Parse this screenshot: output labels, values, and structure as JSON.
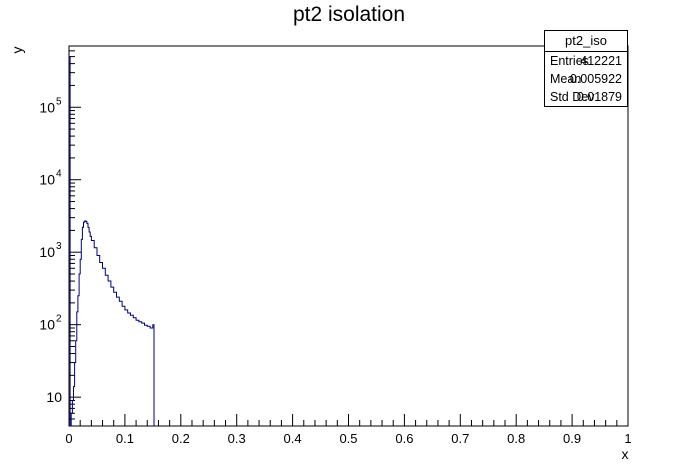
{
  "chart_data": {
    "type": "line",
    "title": "pt2 isolation",
    "xlabel": "x",
    "ylabel": "y",
    "xlim": [
      0,
      1
    ],
    "ylim": [
      4,
      700000
    ],
    "yscale": "log",
    "grid": false,
    "x_ticks": [
      "0",
      "0.1",
      "0.2",
      "0.3",
      "0.4",
      "0.5",
      "0.6",
      "0.7",
      "0.8",
      "0.9",
      "1"
    ],
    "y_ticks": [
      {
        "value": 10,
        "base": "10",
        "exp": ""
      },
      {
        "value": 100,
        "base": "10",
        "exp": "2"
      },
      {
        "value": 1000,
        "base": "10",
        "exp": "3"
      },
      {
        "value": 10000,
        "base": "10",
        "exp": "4"
      },
      {
        "value": 100000,
        "base": "10",
        "exp": "5"
      }
    ],
    "series": [
      {
        "color": "#000080",
        "x": [
          0.0,
          0.002,
          0.004,
          0.006,
          0.008,
          0.01,
          0.012,
          0.014,
          0.016,
          0.018,
          0.02,
          0.022,
          0.024,
          0.026,
          0.028,
          0.03,
          0.032,
          0.034,
          0.036,
          0.038,
          0.04,
          0.045,
          0.05,
          0.055,
          0.06,
          0.065,
          0.07,
          0.075,
          0.08,
          0.085,
          0.09,
          0.095,
          0.1,
          0.105,
          0.11,
          0.115,
          0.12,
          0.125,
          0.13,
          0.135,
          0.14,
          0.145,
          0.15,
          0.152
        ],
        "y": [
          500000,
          4,
          6,
          9,
          14,
          30,
          60,
          150,
          250,
          500,
          800,
          1500,
          2200,
          2600,
          2700,
          2650,
          2500,
          2200,
          1900,
          1650,
          1450,
          1150,
          900,
          720,
          600,
          480,
          400,
          330,
          280,
          240,
          210,
          180,
          160,
          145,
          135,
          125,
          115,
          110,
          105,
          98,
          95,
          90,
          100,
          4
        ]
      }
    ]
  },
  "stats_box": {
    "name": "pt2_iso",
    "rows": [
      {
        "key": "Entries",
        "value": "412221"
      },
      {
        "key": "Mean",
        "value": "0.005922"
      },
      {
        "key": "Std Dev",
        "value": "0.01879"
      }
    ]
  }
}
